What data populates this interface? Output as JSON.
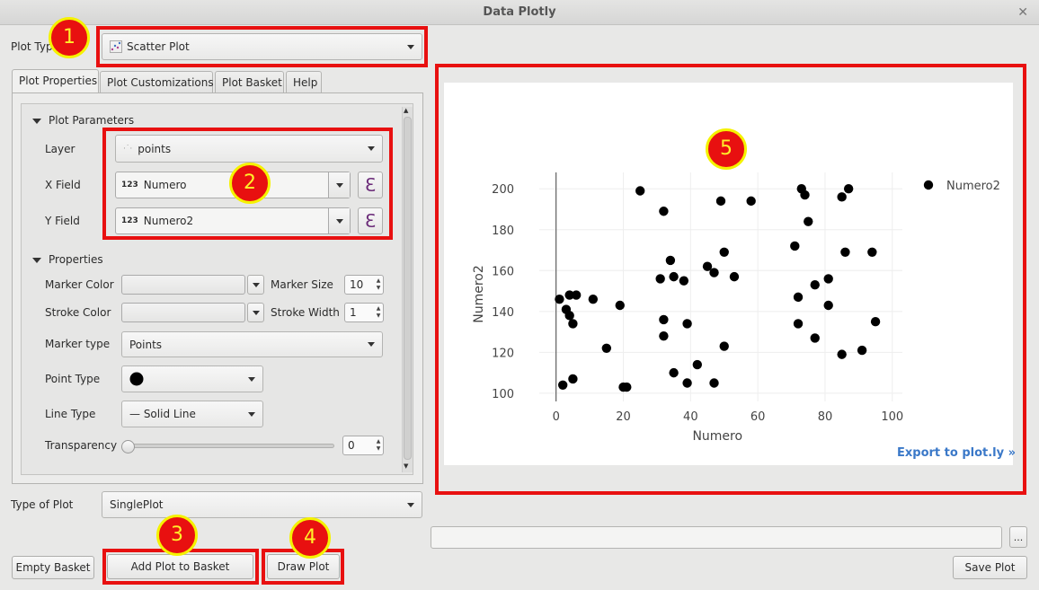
{
  "window": {
    "title": "Data Plotly"
  },
  "plot_type": {
    "label": "Plot Type",
    "value": "Scatter Plot"
  },
  "tabs": [
    {
      "label": "Plot Properties"
    },
    {
      "label": "Plot Customizations"
    },
    {
      "label": "Plot Basket"
    },
    {
      "label": "Help"
    }
  ],
  "plot_params": {
    "header": "Plot Parameters",
    "layer_label": "Layer",
    "layer_value": "points",
    "x_label": "X Field",
    "x_value": "Numero",
    "y_label": "Y Field",
    "y_value": "Numero2",
    "type_badge": "123",
    "expression_glyph": "ℇ"
  },
  "properties": {
    "header": "Properties",
    "marker_color_label": "Marker Color",
    "marker_size_label": "Marker Size",
    "marker_size_value": "10",
    "stroke_color_label": "Stroke Color",
    "stroke_width_label": "Stroke Width",
    "stroke_width_value": "1",
    "marker_type_label": "Marker type",
    "marker_type_value": "Points",
    "point_type_label": "Point Type",
    "line_type_label": "Line Type",
    "line_type_value": "— Solid Line",
    "transparency_label": "Transparency",
    "transparency_value": "0"
  },
  "type_of_plot": {
    "label": "Type of Plot",
    "value": "SinglePlot"
  },
  "buttons": {
    "empty_basket": "Empty Basket",
    "add_plot": "Add Plot to Basket",
    "draw_plot": "Draw Plot",
    "save_plot": "Save Plot",
    "browse": "..."
  },
  "badges": [
    "1",
    "2",
    "3",
    "4",
    "5"
  ],
  "export_link": "Export to plot.ly »",
  "colors": {
    "highlight": "#e81010",
    "badge_fill": "#e81010",
    "badge_ring": "#f5f200",
    "link": "#3a78c8"
  },
  "chart_data": {
    "type": "scatter",
    "xlabel": "Numero",
    "ylabel": "Numero2",
    "xlim": [
      -5,
      103
    ],
    "ylim": [
      96,
      208
    ],
    "x_ticks": [
      0,
      20,
      40,
      60,
      80,
      100
    ],
    "y_ticks": [
      100,
      120,
      140,
      160,
      180,
      200
    ],
    "grid": true,
    "legend_position": "top-right",
    "series": [
      {
        "name": "Numero2",
        "color": "#000000",
        "points": [
          [
            1,
            146
          ],
          [
            2,
            104
          ],
          [
            3,
            141
          ],
          [
            4,
            138
          ],
          [
            4,
            148
          ],
          [
            5,
            107
          ],
          [
            5,
            134
          ],
          [
            6,
            148
          ],
          [
            11,
            146
          ],
          [
            15,
            122
          ],
          [
            19,
            143
          ],
          [
            20,
            103
          ],
          [
            21,
            103
          ],
          [
            25,
            199
          ],
          [
            31,
            156
          ],
          [
            32,
            189
          ],
          [
            32,
            136
          ],
          [
            32,
            128
          ],
          [
            34,
            165
          ],
          [
            35,
            157
          ],
          [
            35,
            110
          ],
          [
            38,
            155
          ],
          [
            39,
            134
          ],
          [
            39,
            105
          ],
          [
            42,
            114
          ],
          [
            45,
            162
          ],
          [
            47,
            159
          ],
          [
            47,
            105
          ],
          [
            49,
            194
          ],
          [
            50,
            169
          ],
          [
            50,
            123
          ],
          [
            53,
            157
          ],
          [
            58,
            194
          ],
          [
            71,
            172
          ],
          [
            72,
            147
          ],
          [
            72,
            134
          ],
          [
            73,
            200
          ],
          [
            74,
            197
          ],
          [
            75,
            184
          ],
          [
            77,
            153
          ],
          [
            77,
            127
          ],
          [
            81,
            156
          ],
          [
            81,
            143
          ],
          [
            85,
            196
          ],
          [
            85,
            119
          ],
          [
            86,
            169
          ],
          [
            87,
            200
          ],
          [
            91,
            121
          ],
          [
            94,
            169
          ],
          [
            95,
            135
          ]
        ]
      }
    ]
  }
}
